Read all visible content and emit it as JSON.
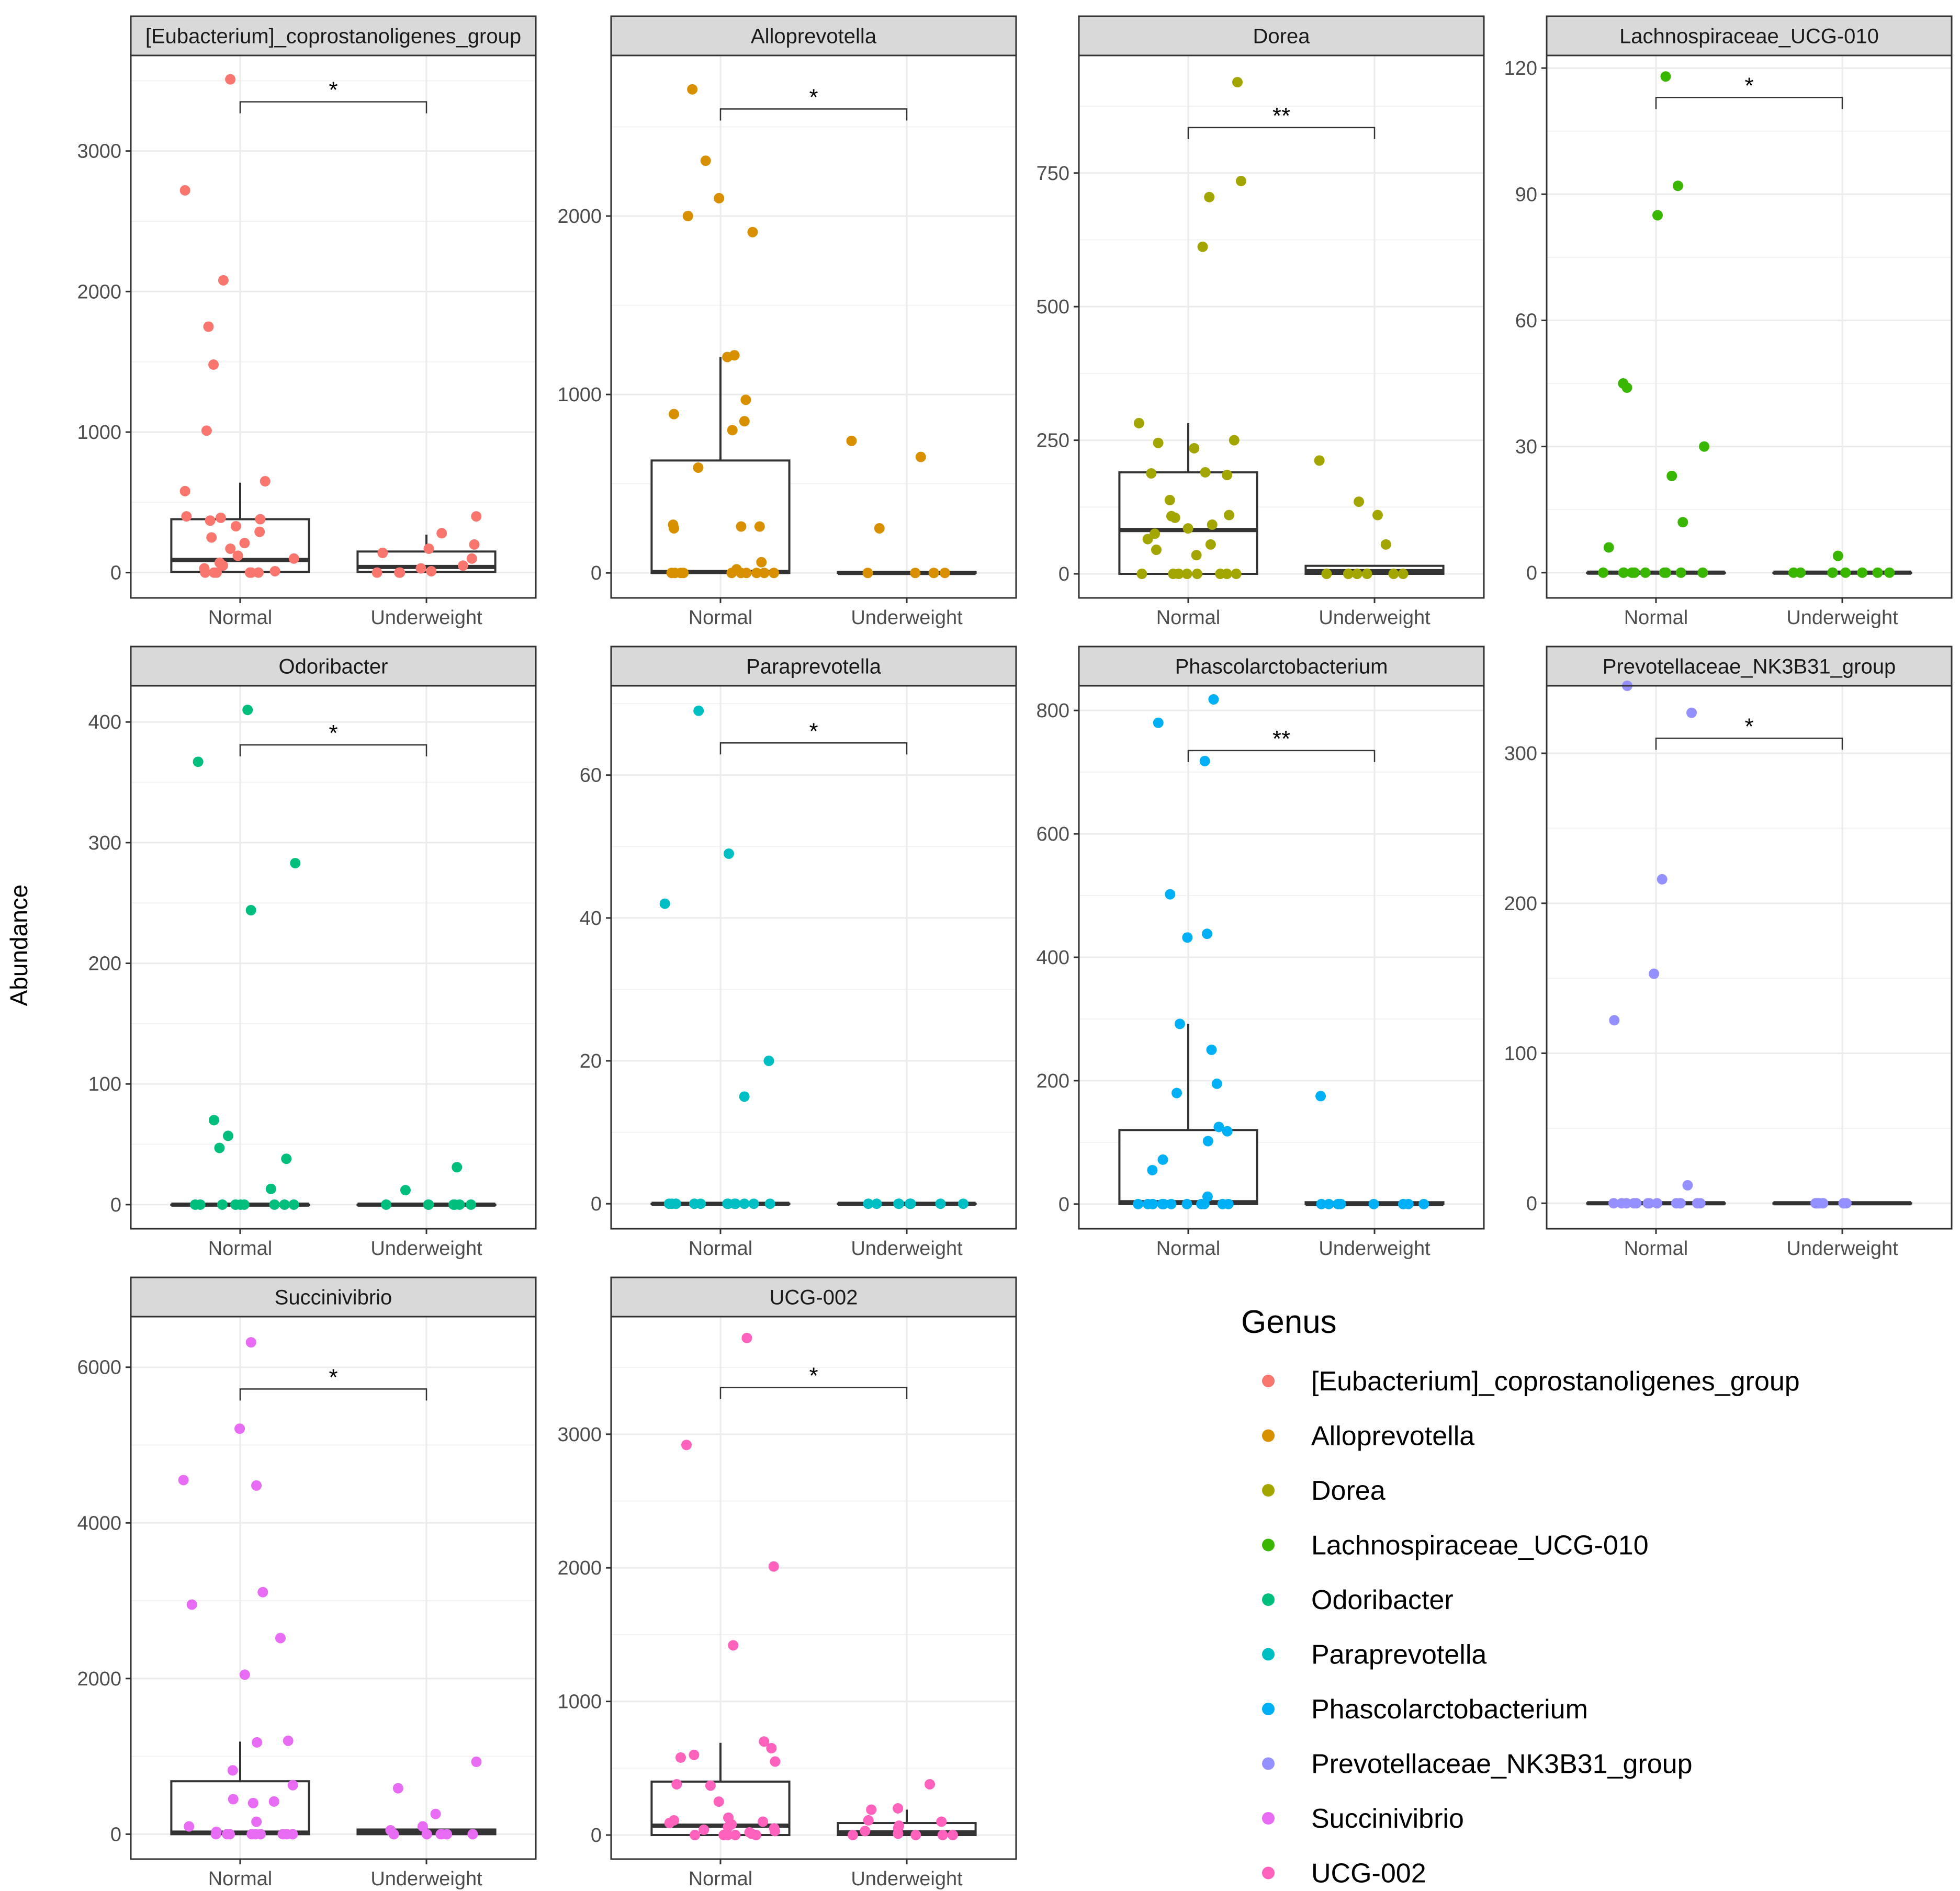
{
  "chart_data": {
    "type": "box-jitter",
    "ylabel": "Abundance",
    "xlabel": "",
    "groups": [
      "Normal",
      "Underweight"
    ],
    "legend": {
      "title": "Genus",
      "entries": [
        {
          "label": "[Eubacterium]_coprostanoligenes_group",
          "color": "#F8766D"
        },
        {
          "label": "Alloprevotella",
          "color": "#D89000"
        },
        {
          "label": "Dorea",
          "color": "#A3A500"
        },
        {
          "label": "Lachnospiraceae_UCG-010",
          "color": "#39B600"
        },
        {
          "label": "Odoribacter",
          "color": "#00BF7D"
        },
        {
          "label": "Paraprevotella",
          "color": "#00BFC4"
        },
        {
          "label": "Phascolarctobacterium",
          "color": "#00B0F6"
        },
        {
          "label": "Prevotellaceae_NK3B31_group",
          "color": "#9590FF"
        },
        {
          "label": "Succinivibrio",
          "color": "#E76BF3"
        },
        {
          "label": "UCG-002",
          "color": "#FF62BC"
        }
      ]
    },
    "panels": [
      {
        "title": "[Eubacterium]_coprostanoligenes_group",
        "color": "#F8766D",
        "ylim": [
          -180,
          3680
        ],
        "yticks": [
          0,
          1000,
          2000,
          3000
        ],
        "significance": "*",
        "bracket_y": 3350,
        "box": {
          "Normal": {
            "q1": 5,
            "median": 90,
            "q3": 380,
            "whisker_low": 0,
            "whisker_high": 640
          },
          "Underweight": {
            "q1": 5,
            "median": 40,
            "q3": 150,
            "whisker_low": 0,
            "whisker_high": 270
          }
        },
        "points": {
          "Normal": [
            3510,
            2720,
            2080,
            1750,
            1480,
            1010,
            650,
            580,
            400,
            390,
            380,
            370,
            330,
            290,
            250,
            210,
            170,
            120,
            100,
            70,
            50,
            30,
            10,
            0,
            0,
            0,
            0,
            0,
            0
          ],
          "Underweight": [
            400,
            280,
            200,
            170,
            140,
            100,
            50,
            30,
            10,
            0,
            0,
            0
          ]
        }
      },
      {
        "title": "Alloprevotella",
        "color": "#D89000",
        "ylim": [
          -140,
          2900
        ],
        "yticks": [
          0,
          1000,
          2000
        ],
        "significance": "*",
        "bracket_y": 2600,
        "box": {
          "Normal": {
            "q1": 0,
            "median": 5,
            "q3": 630,
            "whisker_low": 0,
            "whisker_high": 1210
          },
          "Underweight": {
            "q1": 0,
            "median": 0,
            "q3": 5,
            "whisker_low": 0,
            "whisker_high": 5
          }
        },
        "points": {
          "Normal": [
            2710,
            2310,
            2100,
            2000,
            1910,
            1220,
            1210,
            970,
            890,
            850,
            800,
            590,
            270,
            260,
            260,
            250,
            60,
            20,
            0,
            0,
            0,
            0,
            0,
            0,
            0,
            0,
            0,
            0
          ],
          "Underweight": [
            740,
            650,
            250,
            0,
            0,
            0,
            0
          ]
        }
      },
      {
        "title": "Dorea",
        "color": "#A3A500",
        "ylim": [
          -45,
          970
        ],
        "yticks": [
          0,
          250,
          500,
          750
        ],
        "significance": "**",
        "bracket_y": 835,
        "box": {
          "Normal": {
            "q1": 0,
            "median": 82,
            "q3": 190,
            "whisker_low": 0,
            "whisker_high": 282
          },
          "Underweight": {
            "q1": 0,
            "median": 5,
            "q3": 15,
            "whisker_low": 0,
            "whisker_high": 15
          }
        },
        "points": {
          "Normal": [
            920,
            735,
            705,
            612,
            282,
            250,
            245,
            235,
            190,
            188,
            185,
            138,
            110,
            108,
            105,
            92,
            85,
            75,
            65,
            55,
            45,
            35,
            0,
            0,
            0,
            0,
            0,
            0,
            0,
            0
          ],
          "Underweight": [
            212,
            135,
            110,
            55,
            0,
            0,
            0,
            0,
            0,
            0
          ]
        }
      },
      {
        "title": "Lachnospiraceae_UCG-010",
        "color": "#39B600",
        "ylim": [
          -6,
          123
        ],
        "yticks": [
          0,
          30,
          60,
          90,
          120
        ],
        "significance": "*",
        "bracket_y": 113,
        "box": {
          "Normal": {
            "q1": 0,
            "median": 0,
            "q3": 0,
            "whisker_low": 0,
            "whisker_high": 0
          },
          "Underweight": {
            "q1": 0,
            "median": 0,
            "q3": 0,
            "whisker_low": 0,
            "whisker_high": 0
          }
        },
        "points": {
          "Normal": [
            118,
            92,
            85,
            45,
            44,
            30,
            23,
            12,
            6,
            0,
            0,
            0,
            0,
            0,
            0,
            0,
            0,
            0,
            0
          ],
          "Underweight": [
            4,
            0,
            0,
            0,
            0,
            0,
            0,
            0,
            0
          ]
        }
      },
      {
        "title": "Odoribacter",
        "color": "#00BF7D",
        "ylim": [
          -20,
          430
        ],
        "yticks": [
          0,
          100,
          200,
          300,
          400
        ],
        "significance": "*",
        "bracket_y": 381,
        "box": {
          "Normal": {
            "q1": 0,
            "median": 0,
            "q3": 0,
            "whisker_low": 0,
            "whisker_high": 0
          },
          "Underweight": {
            "q1": 0,
            "median": 0,
            "q3": 0,
            "whisker_low": 0,
            "whisker_high": 0
          }
        },
        "points": {
          "Normal": [
            410,
            367,
            283,
            244,
            70,
            57,
            47,
            38,
            13,
            0,
            0,
            0,
            0,
            0,
            0,
            0,
            0,
            0,
            0
          ],
          "Underweight": [
            31,
            12,
            0,
            0,
            0,
            0,
            0,
            0,
            0
          ]
        }
      },
      {
        "title": "Paraprevotella",
        "color": "#00BFC4",
        "ylim": [
          -3.5,
          72.5
        ],
        "yticks": [
          0,
          20,
          40,
          60
        ],
        "significance": "*",
        "bracket_y": 64.5,
        "box": {
          "Normal": {
            "q1": 0,
            "median": 0,
            "q3": 0,
            "whisker_low": 0,
            "whisker_high": 0
          },
          "Underweight": {
            "q1": 0,
            "median": 0,
            "q3": 0,
            "whisker_low": 0,
            "whisker_high": 0
          }
        },
        "points": {
          "Normal": [
            69,
            49,
            42,
            20,
            15,
            0,
            0,
            0,
            0,
            0,
            0,
            0,
            0,
            0,
            0,
            0,
            0,
            0,
            0
          ],
          "Underweight": [
            0,
            0,
            0,
            0,
            0,
            0,
            0,
            0,
            0
          ]
        }
      },
      {
        "title": "Phascolarctobacterium",
        "color": "#00B0F6",
        "ylim": [
          -40,
          840
        ],
        "yticks": [
          0,
          200,
          400,
          600,
          800
        ],
        "significance": "**",
        "bracket_y": 735,
        "box": {
          "Normal": {
            "q1": 0,
            "median": 3,
            "q3": 120,
            "whisker_low": 0,
            "whisker_high": 292
          },
          "Underweight": {
            "q1": 0,
            "median": 0,
            "q3": 3,
            "whisker_low": 0,
            "whisker_high": 3
          }
        },
        "points": {
          "Normal": [
            818,
            780,
            718,
            502,
            438,
            432,
            292,
            250,
            195,
            180,
            125,
            118,
            102,
            72,
            55,
            12,
            0,
            0,
            0,
            0,
            0,
            0,
            0,
            0,
            0,
            0,
            0,
            0
          ],
          "Underweight": [
            175,
            0,
            0,
            0,
            0,
            0,
            0,
            0,
            0
          ]
        }
      },
      {
        "title": "Prevotellaceae_NK3B31_group",
        "color": "#9590FF",
        "ylim": [
          -17,
          345
        ],
        "yticks": [
          0,
          100,
          200,
          300
        ],
        "significance": "*",
        "bracket_y": 310,
        "box": {
          "Normal": {
            "q1": 0,
            "median": 0,
            "q3": 0,
            "whisker_low": 0,
            "whisker_high": 0
          },
          "Underweight": {
            "q1": 0,
            "median": 0,
            "q3": 0,
            "whisker_low": 0,
            "whisker_high": 0
          }
        },
        "points": {
          "Normal": [
            345,
            327,
            216,
            153,
            122,
            12,
            0,
            0,
            0,
            0,
            0,
            0,
            0,
            0,
            0,
            0,
            0,
            0,
            0
          ],
          "Underweight": [
            0,
            0,
            0,
            0,
            0,
            0,
            0,
            0,
            0
          ]
        }
      },
      {
        "title": "Succinivibrio",
        "color": "#E76BF3",
        "ylim": [
          -320,
          6650
        ],
        "yticks": [
          0,
          2000,
          4000,
          6000
        ],
        "significance": "*",
        "bracket_y": 5720,
        "box": {
          "Normal": {
            "q1": 0,
            "median": 20,
            "q3": 680,
            "whisker_low": 0,
            "whisker_high": 1190
          },
          "Underweight": {
            "q1": 0,
            "median": 20,
            "q3": 60,
            "whisker_low": 0,
            "whisker_high": 60
          }
        },
        "points": {
          "Normal": [
            6320,
            5210,
            4550,
            4480,
            3110,
            2950,
            2520,
            2050,
            1200,
            1180,
            820,
            630,
            450,
            420,
            400,
            160,
            100,
            30,
            0,
            0,
            0,
            0,
            0,
            0,
            0,
            0,
            0
          ],
          "Underweight": [
            930,
            590,
            260,
            100,
            50,
            0,
            0,
            0,
            0,
            0,
            0
          ]
        }
      },
      {
        "title": "UCG-002",
        "color": "#FF62BC",
        "ylim": [
          -180,
          3880
        ],
        "yticks": [
          0,
          1000,
          2000,
          3000
        ],
        "significance": "*",
        "bracket_y": 3350,
        "box": {
          "Normal": {
            "q1": 0,
            "median": 70,
            "q3": 400,
            "whisker_low": 0,
            "whisker_high": 690
          },
          "Underweight": {
            "q1": 0,
            "median": 20,
            "q3": 90,
            "whisker_low": 0,
            "whisker_high": 190
          }
        },
        "points": {
          "Normal": [
            3720,
            2920,
            2010,
            1420,
            700,
            650,
            600,
            580,
            550,
            380,
            370,
            250,
            130,
            110,
            100,
            90,
            80,
            60,
            50,
            40,
            30,
            20,
            10,
            0,
            0,
            0,
            0,
            0,
            0
          ],
          "Underweight": [
            380,
            200,
            190,
            110,
            100,
            70,
            50,
            30,
            10,
            0,
            0,
            0,
            0
          ]
        }
      }
    ]
  }
}
